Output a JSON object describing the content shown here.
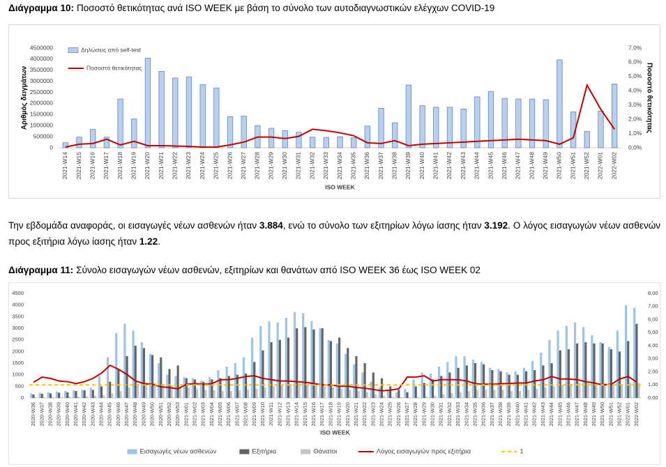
{
  "chart_data": [
    {
      "type": "bar",
      "caption_label": "Διάγραμμα 10:",
      "title": "Ποσοστό θετικότητας ανά ISO WEEK με βάση το σύνολο των αυτοδιαγνωστικών ελέγχων COVID-19",
      "ylabel": "Αριθμός δειγμάτων",
      "y2label": "Ποσοστό θετικότητας",
      "xlabel": "ISO WEEK",
      "legend": "upper left",
      "grid": false,
      "categories": [
        "2021-W14",
        "2021-W15",
        "2021-W16",
        "2021-W17",
        "2021-W18",
        "2021-W19",
        "2021-W20",
        "2021-W21",
        "2021-W22",
        "2021-W23",
        "2021-W24",
        "2021-W25",
        "2021-W26",
        "2021-W27",
        "2021-W28",
        "2021-W29",
        "2021-W30",
        "2021-W31",
        "2021-W32",
        "2021-W33",
        "2021-W34",
        "2021-W35",
        "2021-W36",
        "2021-W37",
        "2021-W38",
        "2021-W39",
        "2021-W40",
        "2021-W41",
        "2021-W42",
        "2021-W43",
        "2021-W44",
        "2021-W45",
        "2021-W46",
        "2021-W47",
        "2021-W48",
        "2021-W49",
        "2021-W50",
        "2021-W51",
        "2021-W52",
        "2022-W01",
        "2022-W02"
      ],
      "series": [
        {
          "name": "Δηλώσεις από self-test",
          "type": "bar",
          "color": "#b9cfec",
          "edgecolor": "#5b87c5",
          "values": [
            230000,
            480000,
            830000,
            480000,
            2200000,
            1300000,
            4050000,
            3450000,
            3150000,
            3200000,
            2850000,
            2700000,
            1400000,
            1430000,
            1000000,
            880000,
            780000,
            700000,
            480000,
            470000,
            500000,
            450000,
            980000,
            1780000,
            1130000,
            2830000,
            1900000,
            1830000,
            1830000,
            1750000,
            2300000,
            2540000,
            2230000,
            2200000,
            2200000,
            2170000,
            3970000,
            1620000,
            740000,
            1650000,
            2880000
          ]
        },
        {
          "name": "Ποσοστό θετικότητας",
          "type": "line",
          "axis": "y2",
          "color": "#c00000",
          "values": [
            0.05,
            0.25,
            0.3,
            0.6,
            0.2,
            0.45,
            0.15,
            0.15,
            0.12,
            0.1,
            0.05,
            0.05,
            0.2,
            0.4,
            0.75,
            0.75,
            0.65,
            0.8,
            1.3,
            1.2,
            1.05,
            0.85,
            0.35,
            0.3,
            0.5,
            0.15,
            0.25,
            0.3,
            0.35,
            0.4,
            0.45,
            0.5,
            0.55,
            0.6,
            0.55,
            0.5,
            0.25,
            0.7,
            4.4,
            2.7,
            1.3
          ]
        }
      ],
      "ylim": [
        0,
        4500000
      ],
      "yticks": [
        0,
        500000,
        1000000,
        1500000,
        2000000,
        2500000,
        3000000,
        3500000,
        4000000,
        4500000
      ],
      "y2lim": [
        0,
        7
      ],
      "y2ticks": [
        {
          "value": 0,
          "label": "0,0%"
        },
        {
          "value": 1,
          "label": "1,0%"
        },
        {
          "value": 2,
          "label": "2,0%"
        },
        {
          "value": 3,
          "label": "3,0%"
        },
        {
          "value": 4,
          "label": "4,0%"
        },
        {
          "value": 5,
          "label": "5,0%"
        },
        {
          "value": 6,
          "label": "6,0%"
        },
        {
          "value": 7,
          "label": "7,0%"
        }
      ]
    },
    {
      "type": "bar",
      "caption_label": "Διάγραμμα 11:",
      "title": "Σύνολο εισαγωγών νέων ασθενών, εξιτηρίων και θανάτων από ISO WEEK 36 έως ISO WEEK 02",
      "xlabel": "ISO WEEK",
      "legend": "lower center",
      "grid": false,
      "categories": [
        "2020-W36",
        "2020-W37",
        "2020-W38",
        "2020-W39",
        "2020-W40",
        "2020-W41",
        "2020-W42",
        "2020-W43",
        "2020-W44",
        "2020-W45",
        "2020-W46",
        "2020-W47",
        "2020-W48",
        "2020-W49",
        "2020-W50",
        "2020-W51",
        "2020-W52",
        "2020-W53",
        "2021-W01",
        "2021-W02",
        "2021-W03",
        "2021-W04",
        "2021-W05",
        "2021-W06",
        "2021-W07",
        "2021-W08",
        "2021-W09",
        "2021-W10",
        "2021-W11",
        "2021-W12",
        "2021-W13",
        "2021-W14",
        "2021-W15",
        "2021-W16",
        "2021-W17",
        "2021-W18",
        "2021-W19",
        "2021-W20",
        "2021-W21",
        "2021-W22",
        "2021-W23",
        "2021-W24",
        "2021-W25",
        "2021-W26",
        "2021-W27",
        "2021-W28",
        "2021-W29",
        "2021-W30",
        "2021-W31",
        "2021-W32",
        "2021-W33",
        "2021-W34",
        "2021-W35",
        "2021-W36",
        "2021-W37",
        "2021-W38",
        "2021-W39",
        "2021-W40",
        "2021-W41",
        "2021-W42",
        "2021-W43",
        "2021-W44",
        "2021-W45",
        "2021-W46",
        "2021-W47",
        "2021-W48",
        "2021-W49",
        "2021-W50",
        "2021-W51",
        "2021-W52",
        "2022-W01",
        "2022-W02"
      ],
      "series": [
        {
          "name": "Εισαγωγές νέων ασθενών",
          "type": "bar",
          "color": "#9dc3e6",
          "values": [
            200,
            220,
            250,
            280,
            300,
            330,
            350,
            450,
            950,
            1750,
            2800,
            3200,
            2900,
            2400,
            1900,
            1500,
            1000,
            950,
            900,
            850,
            750,
            900,
            1200,
            1350,
            1500,
            1750,
            2600,
            3100,
            3300,
            3250,
            3450,
            3700,
            3650,
            3300,
            3000,
            2500,
            2350,
            1900,
            1450,
            1100,
            700,
            450,
            300,
            250,
            400,
            800,
            1100,
            1050,
            1350,
            1550,
            1800,
            1800,
            1650,
            1550,
            1300,
            1250,
            1100,
            1150,
            1300,
            1600,
            1950,
            2500,
            2900,
            3100,
            3250,
            3050,
            2700,
            2400,
            2200,
            2900,
            4000,
            3884
          ]
        },
        {
          "name": "Εξιτήρια",
          "type": "bar",
          "color": "#636363",
          "values": [
            150,
            180,
            200,
            230,
            250,
            300,
            330,
            350,
            500,
            700,
            1250,
            1800,
            2250,
            2150,
            1850,
            1750,
            1250,
            1400,
            850,
            800,
            700,
            800,
            850,
            950,
            1000,
            1050,
            1550,
            2050,
            2400,
            2500,
            2600,
            3000,
            3050,
            2950,
            3000,
            2450,
            2600,
            2150,
            1800,
            1500,
            1100,
            850,
            500,
            350,
            250,
            500,
            650,
            800,
            950,
            1100,
            1300,
            1400,
            1500,
            1450,
            1200,
            1150,
            1000,
            1000,
            1150,
            1200,
            1400,
            1500,
            2050,
            2100,
            2350,
            2400,
            2350,
            2350,
            2100,
            2000,
            2450,
            3192
          ]
        },
        {
          "name": "Θάνατοι",
          "type": "bar",
          "color": "#c4c4c4",
          "values": [
            20,
            30,
            30,
            40,
            50,
            60,
            70,
            90,
            120,
            200,
            300,
            450,
            600,
            650,
            650,
            600,
            550,
            500,
            450,
            400,
            350,
            330,
            300,
            300,
            320,
            350,
            400,
            450,
            500,
            550,
            600,
            650,
            600,
            550,
            500,
            450,
            400,
            350,
            300,
            250,
            150,
            100,
            60,
            40,
            30,
            40,
            60,
            100,
            150,
            200,
            250,
            300,
            350,
            350,
            350,
            350,
            300,
            300,
            350,
            400,
            450,
            500,
            550,
            600,
            650,
            650,
            650,
            650,
            600,
            600,
            650,
            650
          ]
        },
        {
          "name": "Λόγος εισαγωγών προς εξιτήρια",
          "type": "line",
          "axis": "y2",
          "color": "#c00000",
          "values": [
            1.2,
            1.6,
            1.5,
            1.3,
            1.25,
            1.1,
            1.25,
            1.5,
            1.9,
            2.5,
            2.2,
            1.8,
            1.3,
            1.1,
            1.05,
            0.85,
            0.8,
            0.7,
            1.05,
            1.1,
            1.05,
            1.1,
            1.4,
            1.4,
            1.5,
            1.65,
            1.7,
            1.5,
            1.4,
            1.3,
            1.3,
            1.25,
            1.2,
            1.1,
            1.0,
            1.0,
            0.9,
            0.9,
            0.8,
            0.75,
            0.65,
            0.55,
            0.6,
            0.7,
            1.6,
            1.6,
            1.7,
            1.3,
            1.4,
            1.4,
            1.4,
            1.3,
            1.1,
            1.05,
            1.05,
            1.1,
            1.1,
            1.15,
            1.15,
            1.3,
            1.4,
            1.65,
            1.45,
            1.45,
            1.4,
            1.25,
            1.15,
            1.0,
            1.05,
            1.45,
            1.65,
            1.22
          ]
        },
        {
          "name": "1",
          "type": "reference",
          "axis": "y2",
          "color": "#ffc000",
          "dashed": true,
          "value": 1
        }
      ],
      "ylim": [
        0,
        4500
      ],
      "yticks": [
        0,
        500,
        1000,
        1500,
        2000,
        2500,
        3000,
        3500,
        4000,
        4500
      ],
      "y2lim": [
        0,
        8
      ],
      "y2ticks": [
        {
          "value": 0,
          "label": "0,00"
        },
        {
          "value": 1,
          "label": "1,00"
        },
        {
          "value": 2,
          "label": "2,00"
        },
        {
          "value": 3,
          "label": "3,00"
        },
        {
          "value": 4,
          "label": "4,00"
        },
        {
          "value": 5,
          "label": "5,00"
        },
        {
          "value": 6,
          "label": "6,00"
        },
        {
          "value": 7,
          "label": "7,00"
        },
        {
          "value": 8,
          "label": "8,00"
        }
      ]
    }
  ],
  "paragraph": [
    "Την εβδομάδα αναφοράς, οι εισαγωγές νέων ασθενών ήταν ",
    "3.884",
    ", ενώ το σύνολο των εξιτηρίων λόγω ίασης ήταν ",
    "3.192",
    ".  Ο λόγος εισαγωγών νέων ασθενών προς εξιτήρια λόγω ίασης ήταν ",
    "1.22",
    "."
  ]
}
